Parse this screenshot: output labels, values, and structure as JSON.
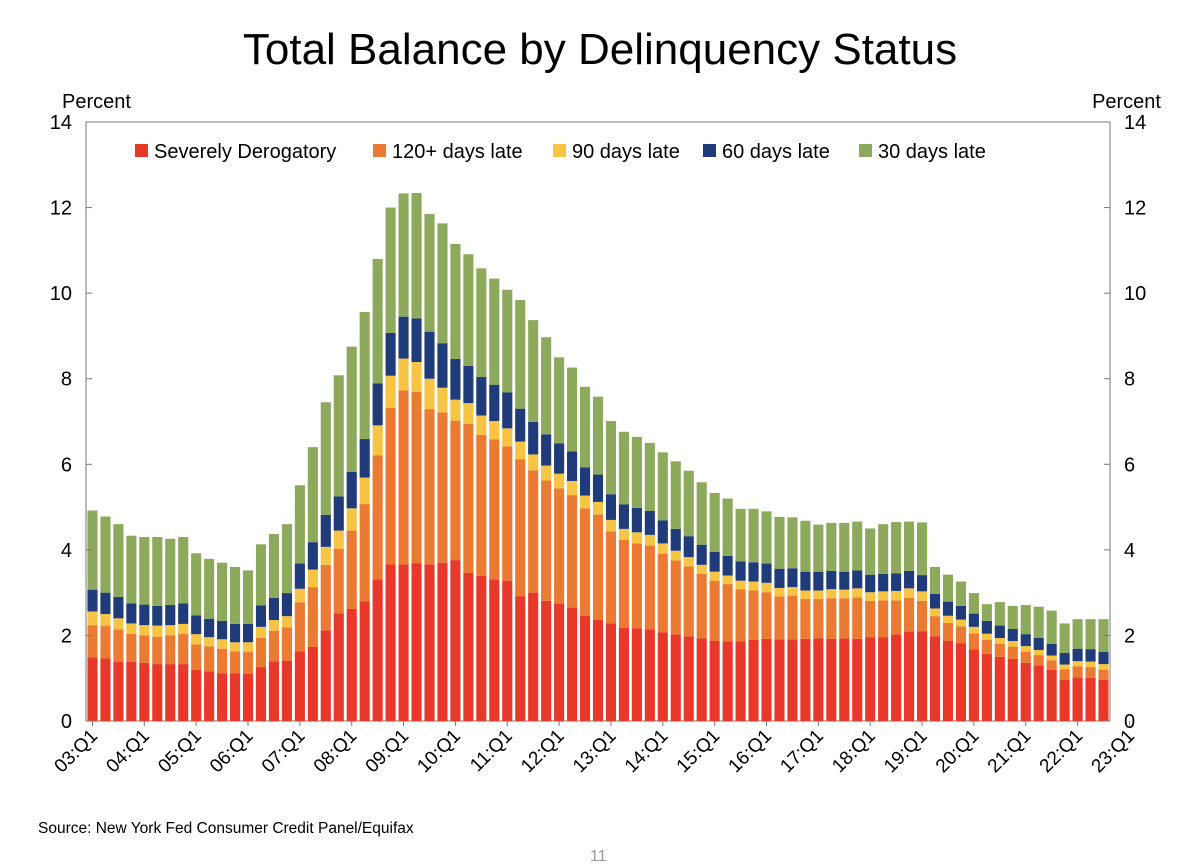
{
  "chart_data": {
    "type": "bar",
    "stacked": true,
    "title": "Total Balance by Delinquency Status",
    "ylabel_left": "Percent",
    "ylabel_right": "Percent",
    "ylim": [
      0,
      14
    ],
    "yticks": [
      0,
      2,
      4,
      6,
      8,
      10,
      12,
      14
    ],
    "legend_position": "top-center",
    "grid": false,
    "x_tick_labels": [
      "03:Q1",
      "04:Q1",
      "05:Q1",
      "06:Q1",
      "07:Q1",
      "08:Q1",
      "09:Q1",
      "10:Q1",
      "11:Q1",
      "12:Q1",
      "13:Q1",
      "14:Q1",
      "15:Q1",
      "16:Q1",
      "17:Q1",
      "18:Q1",
      "19:Q1",
      "20:Q1",
      "21:Q1",
      "22:Q1",
      "23:Q1"
    ],
    "series": [
      {
        "name": "Severely Derogatory",
        "color": "#e8382a",
        "values": [
          1.49,
          1.46,
          1.38,
          1.38,
          1.36,
          1.33,
          1.33,
          1.33,
          1.2,
          1.16,
          1.11,
          1.11,
          1.1,
          1.26,
          1.39,
          1.41,
          1.63,
          1.73,
          2.12,
          2.52,
          2.62,
          2.8,
          3.31,
          3.66,
          3.66,
          3.69,
          3.66,
          3.7,
          3.76,
          3.46,
          3.39,
          3.31,
          3.28,
          2.91,
          3.0,
          2.81,
          2.75,
          2.65,
          2.46,
          2.36,
          2.28,
          2.18,
          2.17,
          2.14,
          2.07,
          2.02,
          1.98,
          1.93,
          1.87,
          1.86,
          1.86,
          1.9,
          1.92,
          1.91,
          1.91,
          1.92,
          1.93,
          1.92,
          1.93,
          1.92,
          1.96,
          1.96,
          2.02,
          2.09,
          2.1,
          1.98,
          1.87,
          1.82,
          1.67,
          1.57,
          1.5,
          1.45,
          1.36,
          1.3,
          1.2,
          0.96,
          1.02,
          1.01,
          0.96
        ]
      },
      {
        "name": "120+ days late",
        "color": "#eb7a33",
        "values": [
          0.75,
          0.76,
          0.76,
          0.66,
          0.64,
          0.64,
          0.67,
          0.71,
          0.59,
          0.58,
          0.58,
          0.52,
          0.52,
          0.68,
          0.72,
          0.78,
          1.14,
          1.4,
          1.53,
          1.5,
          1.83,
          2.27,
          2.9,
          3.66,
          4.07,
          4.0,
          3.63,
          3.51,
          3.26,
          3.49,
          3.3,
          3.27,
          3.14,
          3.21,
          2.86,
          2.81,
          2.69,
          2.63,
          2.51,
          2.47,
          2.15,
          2.05,
          1.98,
          1.96,
          1.84,
          1.73,
          1.63,
          1.51,
          1.41,
          1.34,
          1.22,
          1.15,
          1.09,
          1.0,
          1.02,
          0.93,
          0.92,
          0.95,
          0.94,
          0.97,
          0.85,
          0.86,
          0.8,
          0.79,
          0.71,
          0.47,
          0.42,
          0.39,
          0.38,
          0.33,
          0.3,
          0.29,
          0.26,
          0.24,
          0.22,
          0.25,
          0.26,
          0.25,
          0.24
        ]
      },
      {
        "name": "90 days late",
        "color": "#f7c543",
        "values": [
          0.32,
          0.28,
          0.26,
          0.24,
          0.24,
          0.26,
          0.24,
          0.23,
          0.24,
          0.22,
          0.22,
          0.21,
          0.22,
          0.26,
          0.25,
          0.26,
          0.32,
          0.41,
          0.42,
          0.43,
          0.52,
          0.62,
          0.7,
          0.75,
          0.74,
          0.7,
          0.71,
          0.58,
          0.49,
          0.48,
          0.45,
          0.43,
          0.42,
          0.41,
          0.37,
          0.35,
          0.34,
          0.33,
          0.3,
          0.29,
          0.27,
          0.26,
          0.26,
          0.25,
          0.24,
          0.23,
          0.22,
          0.21,
          0.21,
          0.2,
          0.2,
          0.21,
          0.22,
          0.2,
          0.2,
          0.2,
          0.2,
          0.21,
          0.2,
          0.21,
          0.2,
          0.21,
          0.22,
          0.22,
          0.22,
          0.18,
          0.17,
          0.16,
          0.15,
          0.14,
          0.14,
          0.13,
          0.13,
          0.12,
          0.11,
          0.11,
          0.12,
          0.13,
          0.13
        ]
      },
      {
        "name": "60 days late",
        "color": "#1f3b7a",
        "values": [
          0.51,
          0.5,
          0.5,
          0.47,
          0.48,
          0.46,
          0.47,
          0.48,
          0.44,
          0.43,
          0.43,
          0.43,
          0.43,
          0.5,
          0.52,
          0.54,
          0.59,
          0.64,
          0.75,
          0.8,
          0.85,
          0.9,
          0.98,
          1.0,
          0.98,
          1.02,
          1.1,
          1.04,
          0.95,
          0.87,
          0.9,
          0.85,
          0.84,
          0.77,
          0.76,
          0.73,
          0.71,
          0.69,
          0.66,
          0.64,
          0.6,
          0.57,
          0.57,
          0.56,
          0.54,
          0.51,
          0.49,
          0.47,
          0.46,
          0.46,
          0.45,
          0.45,
          0.45,
          0.45,
          0.44,
          0.44,
          0.44,
          0.43,
          0.42,
          0.42,
          0.41,
          0.41,
          0.41,
          0.41,
          0.38,
          0.34,
          0.33,
          0.32,
          0.31,
          0.3,
          0.29,
          0.28,
          0.28,
          0.28,
          0.27,
          0.27,
          0.29,
          0.29,
          0.29
        ]
      },
      {
        "name": "30 days late",
        "color": "#8da95b",
        "values": [
          1.85,
          1.78,
          1.7,
          1.58,
          1.58,
          1.61,
          1.55,
          1.55,
          1.45,
          1.4,
          1.36,
          1.33,
          1.25,
          1.43,
          1.49,
          1.61,
          1.83,
          2.22,
          2.63,
          2.83,
          2.93,
          2.97,
          2.91,
          2.93,
          2.88,
          2.93,
          2.75,
          2.8,
          2.69,
          2.61,
          2.54,
          2.48,
          2.4,
          2.54,
          2.38,
          2.27,
          2.01,
          1.96,
          1.88,
          1.82,
          1.71,
          1.7,
          1.66,
          1.59,
          1.59,
          1.58,
          1.53,
          1.46,
          1.38,
          1.34,
          1.23,
          1.25,
          1.22,
          1.21,
          1.19,
          1.19,
          1.1,
          1.12,
          1.14,
          1.14,
          1.08,
          1.16,
          1.2,
          1.15,
          1.23,
          0.63,
          0.63,
          0.57,
          0.48,
          0.39,
          0.55,
          0.54,
          0.68,
          0.73,
          0.78,
          0.69,
          0.69,
          0.7,
          0.76
        ]
      }
    ]
  },
  "footer": {
    "source": "Source: New York Fed Consumer Credit Panel/Equifax",
    "page_number": "11"
  }
}
